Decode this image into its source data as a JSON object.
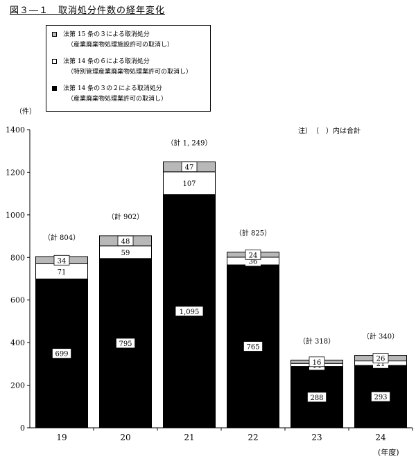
{
  "title": "図３―１　取消処分件数の経年変化",
  "note": "注）　（　）内は合計",
  "y_unit": "（件）",
  "x_unit": "(年度)",
  "legend": [
    {
      "label": "法第 15 条の３による取消処分",
      "sub": "（産業廃棄物処理施設許可の取消し）",
      "color": "#b8b8b8"
    },
    {
      "label": "法第 14 条の６による取消処分",
      "sub": "（特別管理産業廃棄物処理業許可の取消し）",
      "color": "#ffffff"
    },
    {
      "label": "法第 14 条の３の２による取消処分",
      "sub": "（産業廃棄物処理業許可の取消し）",
      "color": "#000000"
    }
  ],
  "chart_data": {
    "type": "bar",
    "stacked": true,
    "categories": [
      "19",
      "20",
      "21",
      "22",
      "23",
      "24"
    ],
    "series": [
      {
        "name": "法第 14 条の３の２による取消処分",
        "color": "#000000",
        "values": [
          699,
          795,
          1095,
          765,
          288,
          293
        ],
        "labels": [
          "699",
          "795",
          "1,095",
          "765",
          "288",
          "293"
        ]
      },
      {
        "name": "法第 14 条の６による取消処分",
        "color": "#ffffff",
        "values": [
          71,
          59,
          107,
          36,
          14,
          21
        ],
        "labels": [
          "71",
          "59",
          "107",
          "36",
          "14",
          "21"
        ]
      },
      {
        "name": "法第 15 条の３による取消処分",
        "color": "#b8b8b8",
        "values": [
          34,
          48,
          47,
          24,
          16,
          26
        ],
        "labels": [
          "34",
          "48",
          "47",
          "24",
          "16",
          "26"
        ]
      }
    ],
    "totals": [
      "（計 804）",
      "（計 902）",
      "（計 1, 249）",
      "（計 825）",
      "（計 318）",
      "（計 340）"
    ],
    "ylim": [
      0,
      1400
    ],
    "yticks": [
      0,
      200,
      400,
      600,
      800,
      1000,
      1200,
      1400
    ],
    "xlabel": "(年度)",
    "ylabel": "（件）",
    "grid": false
  }
}
